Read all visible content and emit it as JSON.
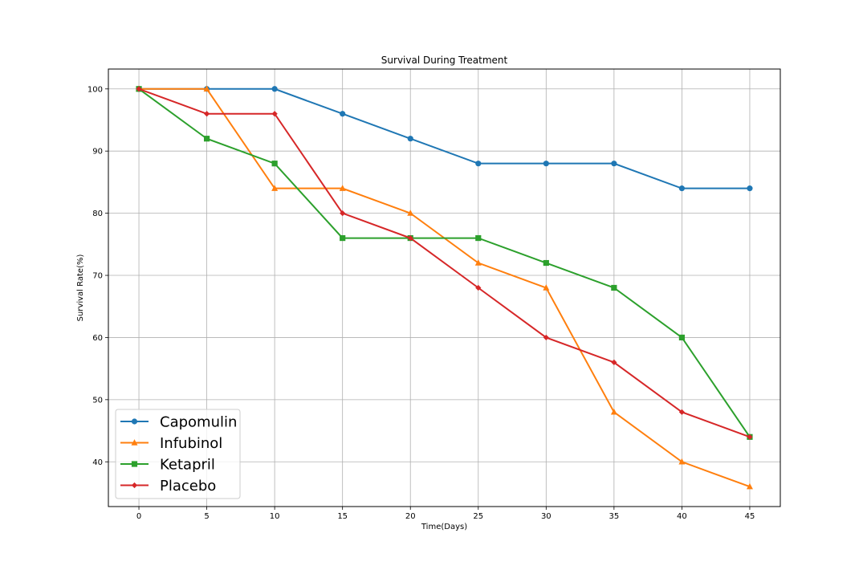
{
  "chart_data": {
    "type": "line",
    "title": "Survival During Treatment",
    "xlabel": "Time(Days)",
    "ylabel": "Survival Rate(%)",
    "x": [
      0,
      5,
      10,
      15,
      20,
      25,
      30,
      35,
      40,
      45
    ],
    "xticks": [
      0,
      5,
      10,
      15,
      20,
      25,
      30,
      35,
      40,
      45
    ],
    "yticks": [
      40,
      50,
      60,
      70,
      80,
      90,
      100
    ],
    "xlim": [
      -2.25,
      47.25
    ],
    "ylim": [
      32.8,
      103.2
    ],
    "grid": true,
    "legend_position": "lower-left",
    "series": [
      {
        "name": "Capomulin",
        "color": "#1f77b4",
        "marker": "circle",
        "values": [
          100,
          100,
          100,
          96,
          92,
          88,
          88,
          88,
          84,
          84
        ]
      },
      {
        "name": "Infubinol",
        "color": "#ff7f0e",
        "marker": "triangle",
        "values": [
          100,
          100,
          84,
          84,
          80,
          72,
          68,
          48,
          40,
          36
        ]
      },
      {
        "name": "Ketapril",
        "color": "#2ca02c",
        "marker": "square",
        "values": [
          100,
          92,
          88,
          76,
          76,
          76,
          72,
          68,
          60,
          44
        ]
      },
      {
        "name": "Placebo",
        "color": "#d62728",
        "marker": "diamond",
        "values": [
          100,
          96,
          96,
          80,
          76,
          68,
          60,
          56,
          48,
          44
        ]
      }
    ]
  }
}
